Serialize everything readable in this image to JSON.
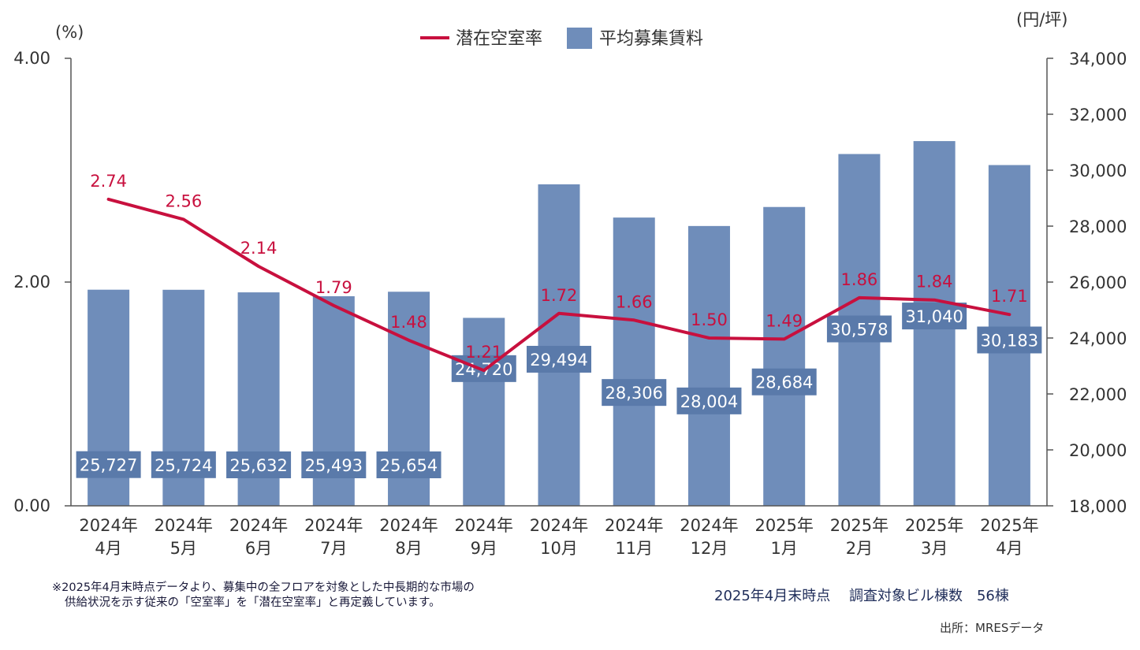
{
  "chart_data": {
    "type": "bar+line",
    "categories": [
      [
        "2024年",
        "4月"
      ],
      [
        "2024年",
        "5月"
      ],
      [
        "2024年",
        "6月"
      ],
      [
        "2024年",
        "7月"
      ],
      [
        "2024年",
        "8月"
      ],
      [
        "2024年",
        "9月"
      ],
      [
        "2024年",
        "10月"
      ],
      [
        "2024年",
        "11月"
      ],
      [
        "2024年",
        "12月"
      ],
      [
        "2025年",
        "1月"
      ],
      [
        "2025年",
        "2月"
      ],
      [
        "2025年",
        "3月"
      ],
      [
        "2025年",
        "4月"
      ]
    ],
    "series": [
      {
        "name": "平均募集賃料",
        "type": "bar",
        "axis": "right",
        "color": "#6f8dba",
        "values": [
          25727,
          25724,
          25632,
          25493,
          25654,
          24720,
          29494,
          28306,
          28004,
          28684,
          30578,
          31040,
          30183
        ],
        "labels": [
          "25,727",
          "25,724",
          "25,632",
          "25,493",
          "25,654",
          "24,720",
          "29,494",
          "28,306",
          "28,004",
          "28,684",
          "30,578",
          "31,040",
          "30,183"
        ]
      },
      {
        "name": "潜在空室率",
        "type": "line",
        "axis": "left",
        "color": "#c8103e",
        "values": [
          2.74,
          2.56,
          2.14,
          1.79,
          1.48,
          1.21,
          1.72,
          1.66,
          1.5,
          1.49,
          1.86,
          1.84,
          1.71
        ],
        "labels": [
          "2.74",
          "2.56",
          "2.14",
          "1.79",
          "1.48",
          "1.21",
          "1.72",
          "1.66",
          "1.50",
          "1.49",
          "1.86",
          "1.84",
          "1.71"
        ]
      }
    ],
    "y_left": {
      "unit": "(%)",
      "ylim": [
        0,
        4
      ],
      "ticks": [
        0,
        2,
        4
      ],
      "tick_labels": [
        "0.00",
        "2.00",
        "4.00"
      ]
    },
    "y_right": {
      "unit": "(円/坪)",
      "ylim": [
        18000,
        34000
      ],
      "ticks": [
        18000,
        20000,
        22000,
        24000,
        26000,
        28000,
        30000,
        32000,
        34000
      ],
      "tick_labels": [
        "18,000",
        "20,000",
        "22,000",
        "24,000",
        "26,000",
        "28,000",
        "30,000",
        "32,000",
        "34,000"
      ]
    },
    "legend_position": "top-center",
    "grid": false
  },
  "footer": {
    "note_line1": "※2025年4月末時点データより、募集中の全フロアを対象とした中長期的な市場の",
    "note_line2": "供給状況を示す従来の「空室率」を「潜在空室率」と再定義しています。",
    "survey": "2025年4月末時点　 調査対象ビル棟数　56棟",
    "source": "出所：MRESデータ"
  }
}
